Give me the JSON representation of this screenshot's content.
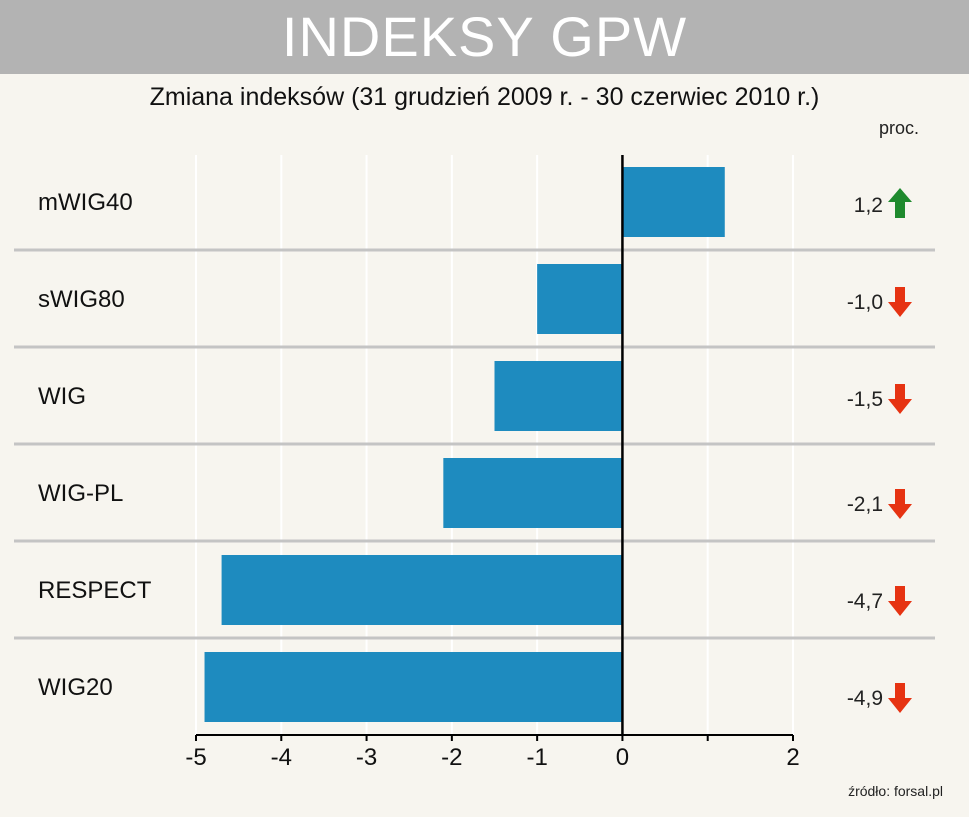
{
  "header": {
    "title": "INDEKSY GPW",
    "subtitle": "Zmiana indeksów (31 grudzień 2009 r. - 30 czerwiec 2010 r.)",
    "unit": "proc."
  },
  "footer": {
    "source": "źródło: forsal.pl"
  },
  "colors": {
    "bar": "#1e8bbf",
    "up_arrow": "#1f8a2e",
    "down_arrow": "#e63312",
    "banner": "#b3b3b3",
    "background": "#f7f5ef"
  },
  "chart_data": {
    "type": "bar",
    "orientation": "horizontal",
    "categories": [
      "mWIG40",
      "sWIG80",
      "WIG",
      "WIG-PL",
      "RESPECT",
      "WIG20"
    ],
    "values": [
      1.2,
      -1.0,
      -1.5,
      -2.1,
      -4.7,
      -4.9
    ],
    "value_labels": [
      "1,2",
      "-1,0",
      "-1,5",
      "-2,1",
      "-4,7",
      "-4,9"
    ],
    "trend_icons": [
      "up-arrow-icon",
      "down-arrow-icon",
      "down-arrow-icon",
      "down-arrow-icon",
      "down-arrow-icon",
      "down-arrow-icon"
    ],
    "xlim": [
      -5,
      2
    ],
    "xticks": [
      "-5",
      "-4",
      "-3",
      "-2",
      "-1",
      "0",
      "2"
    ],
    "xtick_values": [
      -5,
      -4,
      -3,
      -2,
      -1,
      0,
      2
    ],
    "title": "Zmiana indeksów (31 grudzień 2009 r. - 30 czerwiec 2010 r.)",
    "grid": true
  }
}
